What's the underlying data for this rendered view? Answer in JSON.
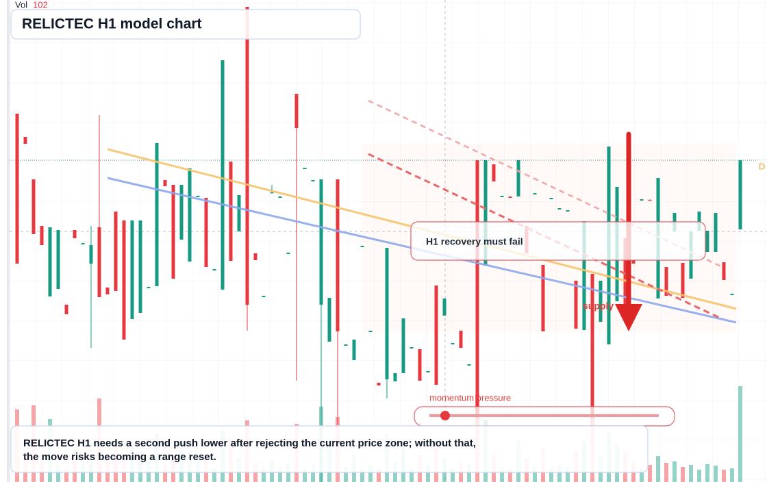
{
  "chart_data": {
    "type": "candlestick",
    "title": "RELICTEC H1 model chart",
    "volume_label": "Vol",
    "volume_value": 102,
    "price_tag": "D",
    "annotation": "H1 recovery must fail",
    "zone_label": "supply",
    "momentum_label": "momentum pressure",
    "summary_lines": [
      "RELICTEC H1 needs a second push lower after rejecting the current price zone; without that,",
      "the move risks becoming a range reset."
    ],
    "up_color": "#169a82",
    "down_color": "#e5383f",
    "ylim": [
      0,
      704
    ],
    "open": [
      538,
      504,
      442,
      374,
      271,
      282,
      259,
      368,
      347,
      319,
      372,
      284,
      395,
      382,
      238,
      247,
      283,
      286,
      441,
      434,
      354,
      322,
      416,
      415,
      309,
      281,
      468,
      366,
      694,
      334,
      270,
      422,
      415,
      333,
      567,
      457,
      439,
      259,
      205,
      442,
      199,
      178,
      343,
      219,
      145,
      150,
      147,
      159,
      195,
      194,
      160,
      287,
      243,
      201,
      221,
      170,
      470,
      316,
      464,
      416,
      417,
      417,
      374,
      420,
      317,
      413,
      398,
      395,
      294,
      222,
      304,
      234,
      201,
      264,
      356,
      324,
      411,
      412,
      268,
      314,
      366,
      320,
      297,
      367,
      336,
      336,
      321,
      273,
      369
    ],
    "high": [
      538,
      504,
      442,
      374,
      372,
      368,
      259,
      368,
      349,
      374,
      536,
      284,
      395,
      382,
      382,
      382,
      285,
      495,
      441,
      434,
      434,
      458,
      418,
      415,
      311,
      616,
      468,
      419,
      694,
      334,
      272,
      434,
      417,
      335,
      567,
      459,
      441,
      442,
      269,
      442,
      201,
      208,
      345,
      221,
      145,
      342,
      159,
      239,
      197,
      194,
      162,
      287,
      268,
      203,
      221,
      172,
      470,
      470,
      464,
      418,
      417,
      470,
      374,
      422,
      317,
      415,
      400,
      397,
      294,
      381,
      304,
      294,
      490,
      431,
      356,
      324,
      413,
      413,
      444,
      314,
      393,
      320,
      366,
      395,
      367,
      393,
      321,
      275,
      470
    ],
    "low": [
      319,
      494,
      362,
      346,
      271,
      282,
      245,
      356,
      347,
      196,
      270,
      274,
      279,
      208,
      238,
      247,
      283,
      286,
      432,
      297,
      354,
      322,
      416,
      314,
      309,
      281,
      323,
      366,
      221,
      324,
      270,
      421,
      415,
      333,
      148,
      457,
      439,
      0,
      205,
      84,
      199,
      178,
      343,
      219,
      141,
      122,
      147,
      159,
      195,
      148,
      160,
      142,
      243,
      201,
      196,
      170,
      94,
      316,
      439,
      416,
      415,
      417,
      334,
      420,
      220,
      413,
      398,
      395,
      224,
      222,
      94,
      234,
      201,
      264,
      259,
      319,
      411,
      411,
      268,
      272,
      366,
      269,
      297,
      367,
      336,
      336,
      295,
      273,
      369
    ],
    "close": [
      319,
      494,
      362,
      346,
      372,
      368,
      245,
      356,
      349,
      346,
      270,
      274,
      279,
      208,
      382,
      382,
      285,
      495,
      432,
      297,
      434,
      458,
      418,
      314,
      311,
      616,
      323,
      419,
      259,
      324,
      272,
      423,
      417,
      335,
      517,
      459,
      441,
      442,
      269,
      220,
      201,
      208,
      345,
      221,
      141,
      342,
      159,
      239,
      197,
      148,
      162,
      142,
      268,
      203,
      196,
      172,
      94,
      470,
      439,
      418,
      415,
      470,
      334,
      422,
      220,
      415,
      400,
      397,
      224,
      381,
      94,
      294,
      490,
      431,
      259,
      319,
      413,
      411,
      444,
      272,
      393,
      269,
      366,
      395,
      367,
      393,
      295,
      275,
      470
    ],
    "volume": [
      106,
      40,
      112,
      30,
      92,
      25,
      20,
      35,
      28,
      30,
      122,
      40,
      60,
      35,
      50,
      45,
      30,
      70,
      25,
      40,
      55,
      45,
      30,
      38,
      20,
      75,
      60,
      35,
      90,
      25,
      20,
      30,
      22,
      28,
      85,
      20,
      25,
      110,
      60,
      95,
      22,
      40,
      18,
      25,
      20,
      70,
      30,
      55,
      20,
      40,
      25,
      60,
      35,
      20,
      30,
      25,
      128,
      90,
      40,
      22,
      20,
      60,
      35,
      22,
      50,
      20,
      25,
      22,
      45,
      60,
      95,
      38,
      72,
      55,
      42,
      30,
      20,
      25,
      38,
      28,
      30,
      22,
      25,
      18,
      26,
      24,
      18,
      20,
      140
    ]
  }
}
